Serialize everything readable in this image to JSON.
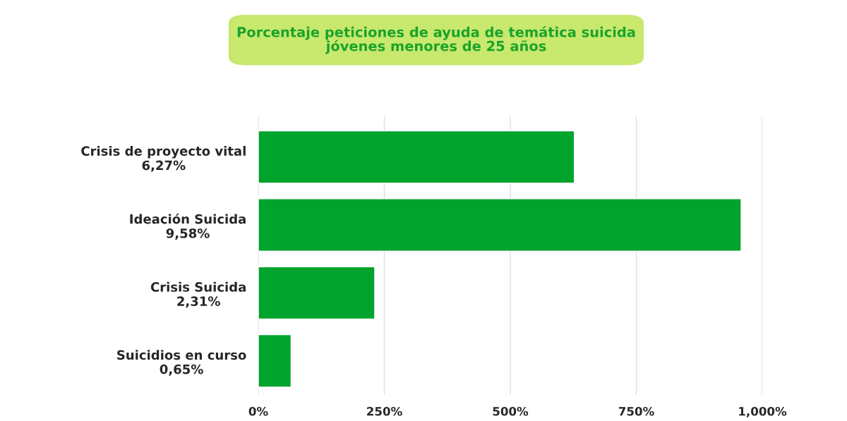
{
  "chart_data": {
    "type": "bar",
    "orientation": "horizontal",
    "title": "Porcentaje peticiones de ayuda de temática suicida\njóvenes menores de 25 años",
    "categories": [
      "Crisis de proyecto vital\n6,27%",
      "Ideación Suicida\n9,58%",
      "Crisis Suicida\n2,31%",
      "Suicidios en curso\n0,65%"
    ],
    "values": [
      627,
      958,
      231,
      65
    ],
    "color": "#00a32c",
    "xlim": [
      0,
      1000
    ],
    "xticks": [
      {
        "value": 0,
        "label": "0%"
      },
      {
        "value": 250,
        "label": "250%"
      },
      {
        "value": 500,
        "label": "500%"
      },
      {
        "value": 750,
        "label": "750%"
      },
      {
        "value": 1000,
        "label": "1,000%"
      }
    ],
    "grid": "x"
  }
}
